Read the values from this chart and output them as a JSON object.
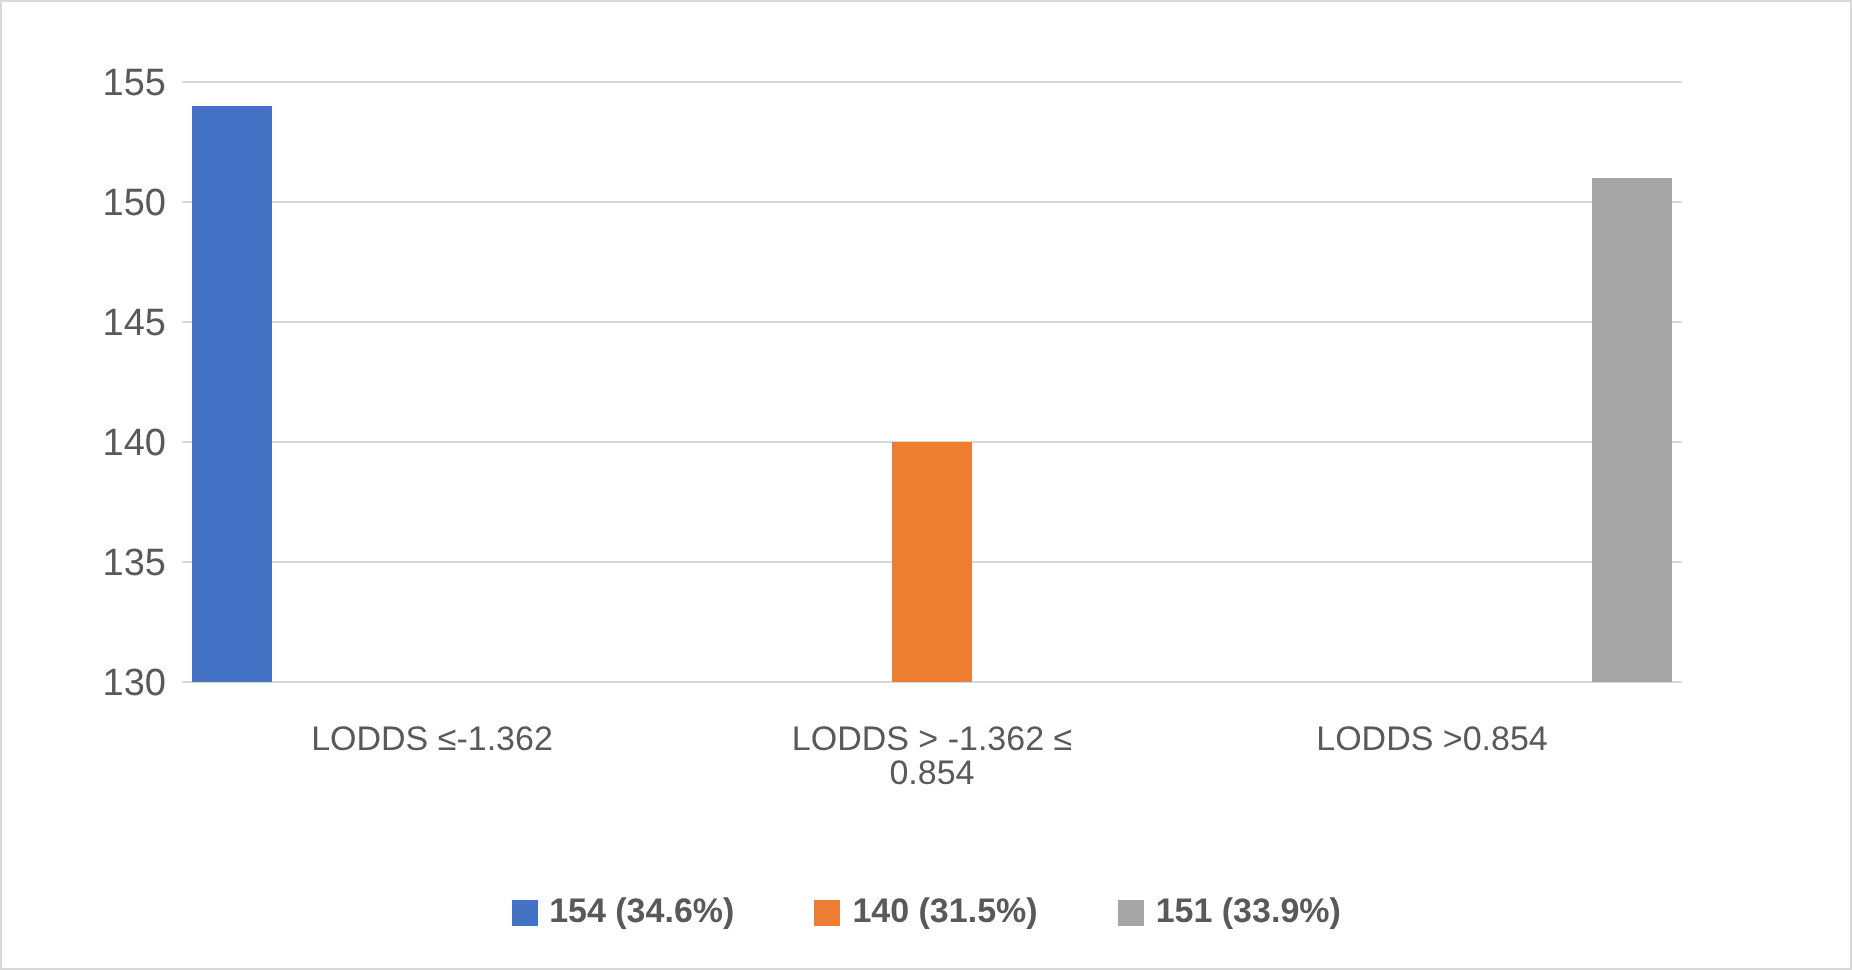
{
  "chart_data": {
    "type": "bar",
    "categories": [
      "LODDS ≤-1.362",
      "LODDS > -1.362 ≤ 0.854",
      "LODDS >0.854"
    ],
    "series": [
      {
        "name": "154 (34.6%)",
        "color": "#4472c4",
        "values": [
          154,
          null,
          null
        ]
      },
      {
        "name": "140 (31.5%)",
        "color": "#ed7d31",
        "values": [
          null,
          140,
          null
        ]
      },
      {
        "name": "151 (33.9%)",
        "color": "#a5a5a5",
        "values": [
          null,
          null,
          151
        ]
      }
    ],
    "ylim": [
      130,
      155
    ],
    "yticks": [
      130,
      135,
      140,
      145,
      150,
      155
    ],
    "grid": "y",
    "legend": "bottom"
  }
}
